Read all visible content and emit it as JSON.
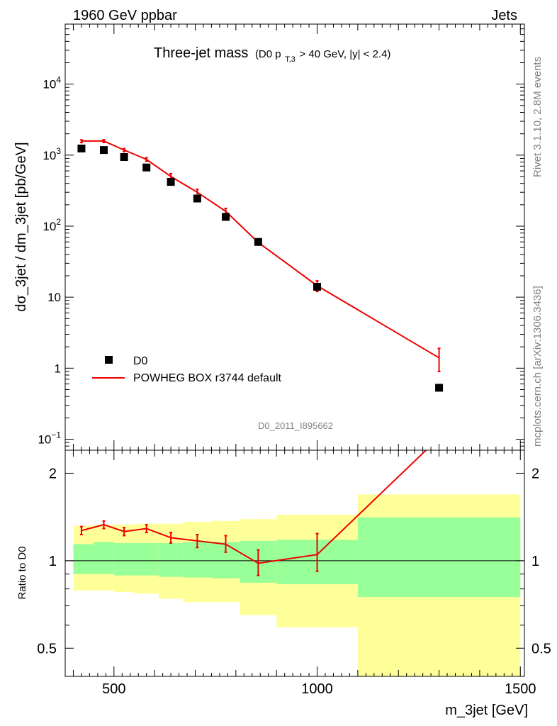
{
  "header": {
    "left": "1960 GeV ppbar",
    "right": "Jets"
  },
  "title": {
    "main": "Three-jet mass",
    "cond_prefix": "(D0 p",
    "cond_sub": "T,3",
    "cond_suffix": " > 40 GeV, |y| < 2.4)"
  },
  "side": {
    "rivet": "Rivet 3.1.10,  2.8M events",
    "mcplots": "mcplots.cern.ch [arXiv:1306.3436]"
  },
  "analysis_id": "D0_2011_I895662",
  "chart_data": [
    {
      "type": "scatter",
      "panel": "main",
      "ylabel": "dσ_3jet / dm_3jet [pb/GeV]",
      "yscale": "log",
      "xlim": [
        380,
        1510
      ],
      "ylim": [
        0.07,
        70000
      ],
      "yticks": [
        {
          "value": 10000,
          "base": "10",
          "exp": "4"
        },
        {
          "value": 1000,
          "base": "10",
          "exp": "3"
        },
        {
          "value": 100,
          "base": "10",
          "exp": "2"
        },
        {
          "value": 10,
          "base": "10",
          "exp": ""
        },
        {
          "value": 1,
          "base": "1",
          "exp": ""
        },
        {
          "value": 0.1,
          "base": "10",
          "exp": "−1"
        }
      ],
      "legend": {
        "position": "bottom-left",
        "data_label": "D0",
        "mc_label": "POWHEG BOX r3744 default"
      },
      "series": [
        {
          "name": "D0",
          "style": "markers",
          "color": "#000000",
          "x": [
            420,
            475,
            525,
            580,
            640,
            705,
            775,
            855,
            1000,
            1300
          ],
          "y": [
            1240,
            1180,
            940,
            670,
            420,
            245,
            135,
            60,
            14,
            0.53
          ]
        },
        {
          "name": "POWHEG BOX r3744 default",
          "style": "line",
          "color": "#ee0000",
          "x": [
            420,
            475,
            525,
            580,
            640,
            705,
            775,
            855,
            1000,
            1300
          ],
          "y": [
            1580,
            1580,
            1180,
            870,
            500,
            300,
            162,
            59,
            14.5,
            1.4
          ],
          "err_low": [
            1500,
            1510,
            1120,
            820,
            450,
            270,
            145,
            54,
            12,
            0.9
          ],
          "err_high": [
            1640,
            1650,
            1240,
            920,
            550,
            330,
            178,
            64,
            17,
            1.9
          ]
        }
      ]
    },
    {
      "type": "line",
      "panel": "ratio",
      "ylabel": "Ratio to D0",
      "xlabel": "m_3jet [GeV]",
      "yscale": "log",
      "xlim": [
        380,
        1510
      ],
      "ylim": [
        0.4,
        2.4
      ],
      "xticks": [
        500,
        1000,
        1500
      ],
      "xtick_labels": [
        "500",
        "1000",
        "1500"
      ],
      "yticks": [
        0.5,
        1,
        2
      ],
      "ytick_labels": [
        "0.5",
        "1",
        "2"
      ],
      "bands": {
        "edges": [
          400,
          450,
          500,
          550,
          610,
          670,
          740,
          810,
          900,
          1100,
          1500
        ],
        "stat": [
          [
            0.9,
            1.14
          ],
          [
            0.9,
            1.16
          ],
          [
            0.89,
            1.15
          ],
          [
            0.89,
            1.15
          ],
          [
            0.88,
            1.15
          ],
          [
            0.875,
            1.16
          ],
          [
            0.87,
            1.16
          ],
          [
            0.84,
            1.17
          ],
          [
            0.83,
            1.18
          ],
          [
            0.75,
            1.41
          ]
        ],
        "total": [
          [
            0.79,
            1.32
          ],
          [
            0.79,
            1.33
          ],
          [
            0.78,
            1.33
          ],
          [
            0.77,
            1.34
          ],
          [
            0.74,
            1.34
          ],
          [
            0.72,
            1.36
          ],
          [
            0.72,
            1.37
          ],
          [
            0.65,
            1.39
          ],
          [
            0.59,
            1.44
          ],
          [
            0.37,
            1.69
          ]
        ],
        "stat_color": "#99ff99",
        "total_color": "#ffff99"
      },
      "series": [
        {
          "name": "POWHEG BOX r3744 default",
          "color": "#ee0000",
          "x": [
            420,
            475,
            525,
            580,
            640,
            705,
            775,
            855,
            1000,
            1300
          ],
          "y": [
            1.27,
            1.33,
            1.26,
            1.29,
            1.2,
            1.17,
            1.14,
            0.98,
            1.05,
            2.65
          ],
          "err_low": [
            1.23,
            1.29,
            1.22,
            1.25,
            1.15,
            1.11,
            1.07,
            0.89,
            0.92
          ],
          "err_high": [
            1.31,
            1.37,
            1.3,
            1.33,
            1.25,
            1.23,
            1.22,
            1.09,
            1.24
          ]
        }
      ]
    }
  ]
}
